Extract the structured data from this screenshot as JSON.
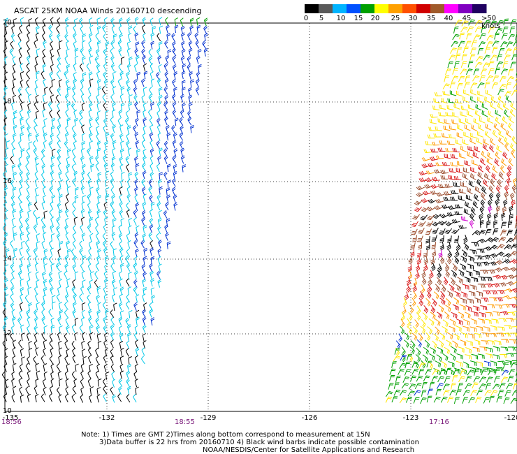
{
  "title": "ASCAT 25KM NOAA Winds 20160710 descending",
  "key": {
    "ticks": [
      "0",
      "5",
      "10",
      "15",
      "20",
      "25",
      "30",
      "35",
      "40",
      "45",
      ">50 knots"
    ],
    "colors": [
      "#000000",
      "#5a5a5a",
      "#00b4ff",
      "#0050ff",
      "#00a000",
      "#ffff00",
      "#ffa000",
      "#ff5000",
      "#d00000",
      "#a05a2a",
      "#ff00ff",
      "#8000c0",
      "#200060"
    ]
  },
  "axes": {
    "lat_labels": [
      "20",
      "18",
      "16",
      "14",
      "12",
      "10"
    ],
    "lon_labels": [
      "-135",
      "-132",
      "-129",
      "-126",
      "-123",
      "-120"
    ]
  },
  "times": [
    "18:56",
    "18:55",
    "17:16"
  ],
  "notes": {
    "line1": "Note: 1) Times are GMT 2)Times along bottom correspond to measurement at 15N",
    "line2": "3)Data buffer is 22 hrs from 20160710 4) Black wind barbs indicate possible contamination",
    "line3": "NOAA/NESDIS/Center for Satellite Applications and Research"
  },
  "map_data": {
    "lat_range": [
      10,
      20
    ],
    "lon_range": [
      -135,
      -120
    ],
    "swaths": [
      {
        "name": "west",
        "lon_min": -135,
        "lon_max": -130.5
      },
      {
        "name": "east",
        "lon_min": -123.6,
        "lon_max": -120
      }
    ],
    "storm_center": {
      "lat": 14.6,
      "lon": -121.3
    },
    "barb_colors": {
      "black": "#000000",
      "cyan": "#00c8e8",
      "blue": "#0030d0",
      "green": "#00a000",
      "yellow": "#ffe600",
      "orange": "#ff9a00",
      "red": "#d81818",
      "brown": "#9a4a2a",
      "magenta": "#d000d0"
    }
  }
}
